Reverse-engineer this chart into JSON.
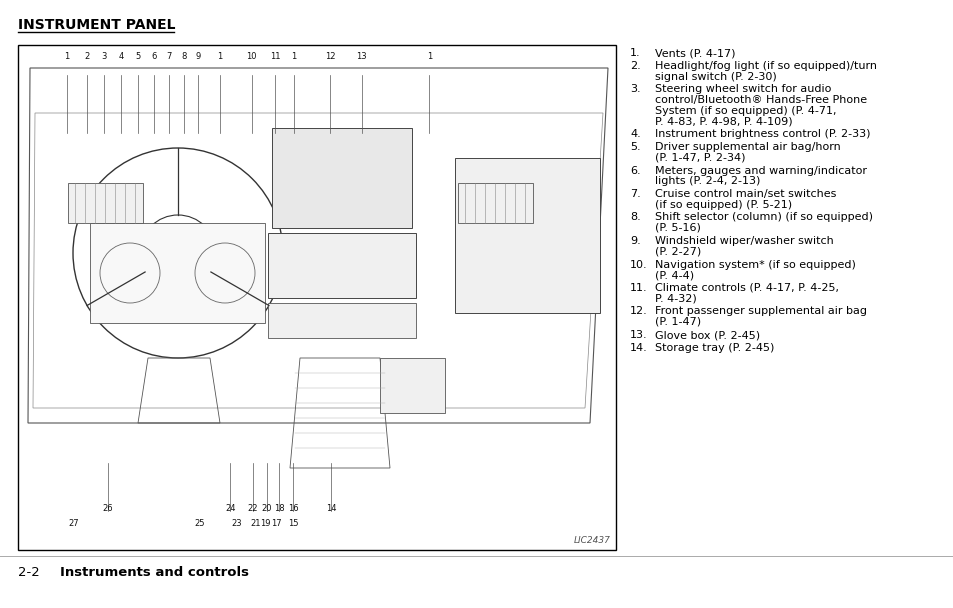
{
  "title": "INSTRUMENT PANEL",
  "footer_num": "2-2",
  "footer_text": "Instruments and controls",
  "image_label": "LIC2437",
  "bg_color": "#ffffff",
  "title_fontsize": 10,
  "body_fontsize": 8.0,
  "footer_fontsize": 9.5,
  "items": [
    {
      "num": "1.",
      "text": "Vents (P. 4-17)"
    },
    {
      "num": "2.",
      "text": "Headlight/fog light (if so equipped)/turn\nsignal switch (P. 2-30)"
    },
    {
      "num": "3.",
      "text": "Steering wheel switch for audio\ncontrol/Bluetooth® Hands-Free Phone\nSystem (if so equipped) (P. 4-71,\nP. 4-83, P. 4-98, P. 4-109)"
    },
    {
      "num": "4.",
      "text": "Instrument brightness control (P. 2-33)"
    },
    {
      "num": "5.",
      "text": "Driver supplemental air bag/horn\n(P. 1-47, P. 2-34)"
    },
    {
      "num": "6.",
      "text": "Meters, gauges and warning/indicator\nlights (P. 2-4, 2-13)"
    },
    {
      "num": "7.",
      "text": "Cruise control main/set switches\n(if so equipped) (P. 5-21)"
    },
    {
      "num": "8.",
      "text": "Shift selector (column) (if so equipped)\n(P. 5-16)"
    },
    {
      "num": "9.",
      "text": "Windshield wiper/washer switch\n(P. 2-27)"
    },
    {
      "num": "10.",
      "text": "Navigation system* (if so equipped)\n(P. 4-4)"
    },
    {
      "num": "11.",
      "text": "Climate controls (P. 4-17, P. 4-25,\nP. 4-32)"
    },
    {
      "num": "12.",
      "text": "Front passenger supplemental air bag\n(P. 1-47)"
    },
    {
      "num": "13.",
      "text": "Glove box (P. 2-45)"
    },
    {
      "num": "14.",
      "text": "Storage tray (P. 2-45)"
    }
  ],
  "diagram_top_nums": [
    {
      "n": "1",
      "xf": 0.082
    },
    {
      "n": "2",
      "xf": 0.115
    },
    {
      "n": "3",
      "xf": 0.143
    },
    {
      "n": "4",
      "xf": 0.172
    },
    {
      "n": "5",
      "xf": 0.2
    },
    {
      "n": "6",
      "xf": 0.228
    },
    {
      "n": "7",
      "xf": 0.253
    },
    {
      "n": "8",
      "xf": 0.278
    },
    {
      "n": "9",
      "xf": 0.301
    },
    {
      "n": "1",
      "xf": 0.338
    },
    {
      "n": "10",
      "xf": 0.391
    },
    {
      "n": "11",
      "xf": 0.43
    },
    {
      "n": "1",
      "xf": 0.461
    },
    {
      "n": "12",
      "xf": 0.522
    },
    {
      "n": "13",
      "xf": 0.575
    },
    {
      "n": "1",
      "xf": 0.688
    }
  ],
  "diagram_bot_nums": [
    {
      "n": "26",
      "xf": 0.15,
      "row": 0
    },
    {
      "n": "27",
      "xf": 0.093,
      "row": 1
    },
    {
      "n": "24",
      "xf": 0.355,
      "row": 0
    },
    {
      "n": "25",
      "xf": 0.303,
      "row": 1
    },
    {
      "n": "22",
      "xf": 0.393,
      "row": 0
    },
    {
      "n": "23",
      "xf": 0.366,
      "row": 1
    },
    {
      "n": "20",
      "xf": 0.416,
      "row": 0
    },
    {
      "n": "21",
      "xf": 0.397,
      "row": 1
    },
    {
      "n": "18",
      "xf": 0.437,
      "row": 0
    },
    {
      "n": "19",
      "xf": 0.414,
      "row": 1
    },
    {
      "n": "17",
      "xf": 0.432,
      "row": 1
    },
    {
      "n": "16",
      "xf": 0.46,
      "row": 0
    },
    {
      "n": "15",
      "xf": 0.461,
      "row": 1
    },
    {
      "n": "14",
      "xf": 0.524,
      "row": 0
    }
  ]
}
